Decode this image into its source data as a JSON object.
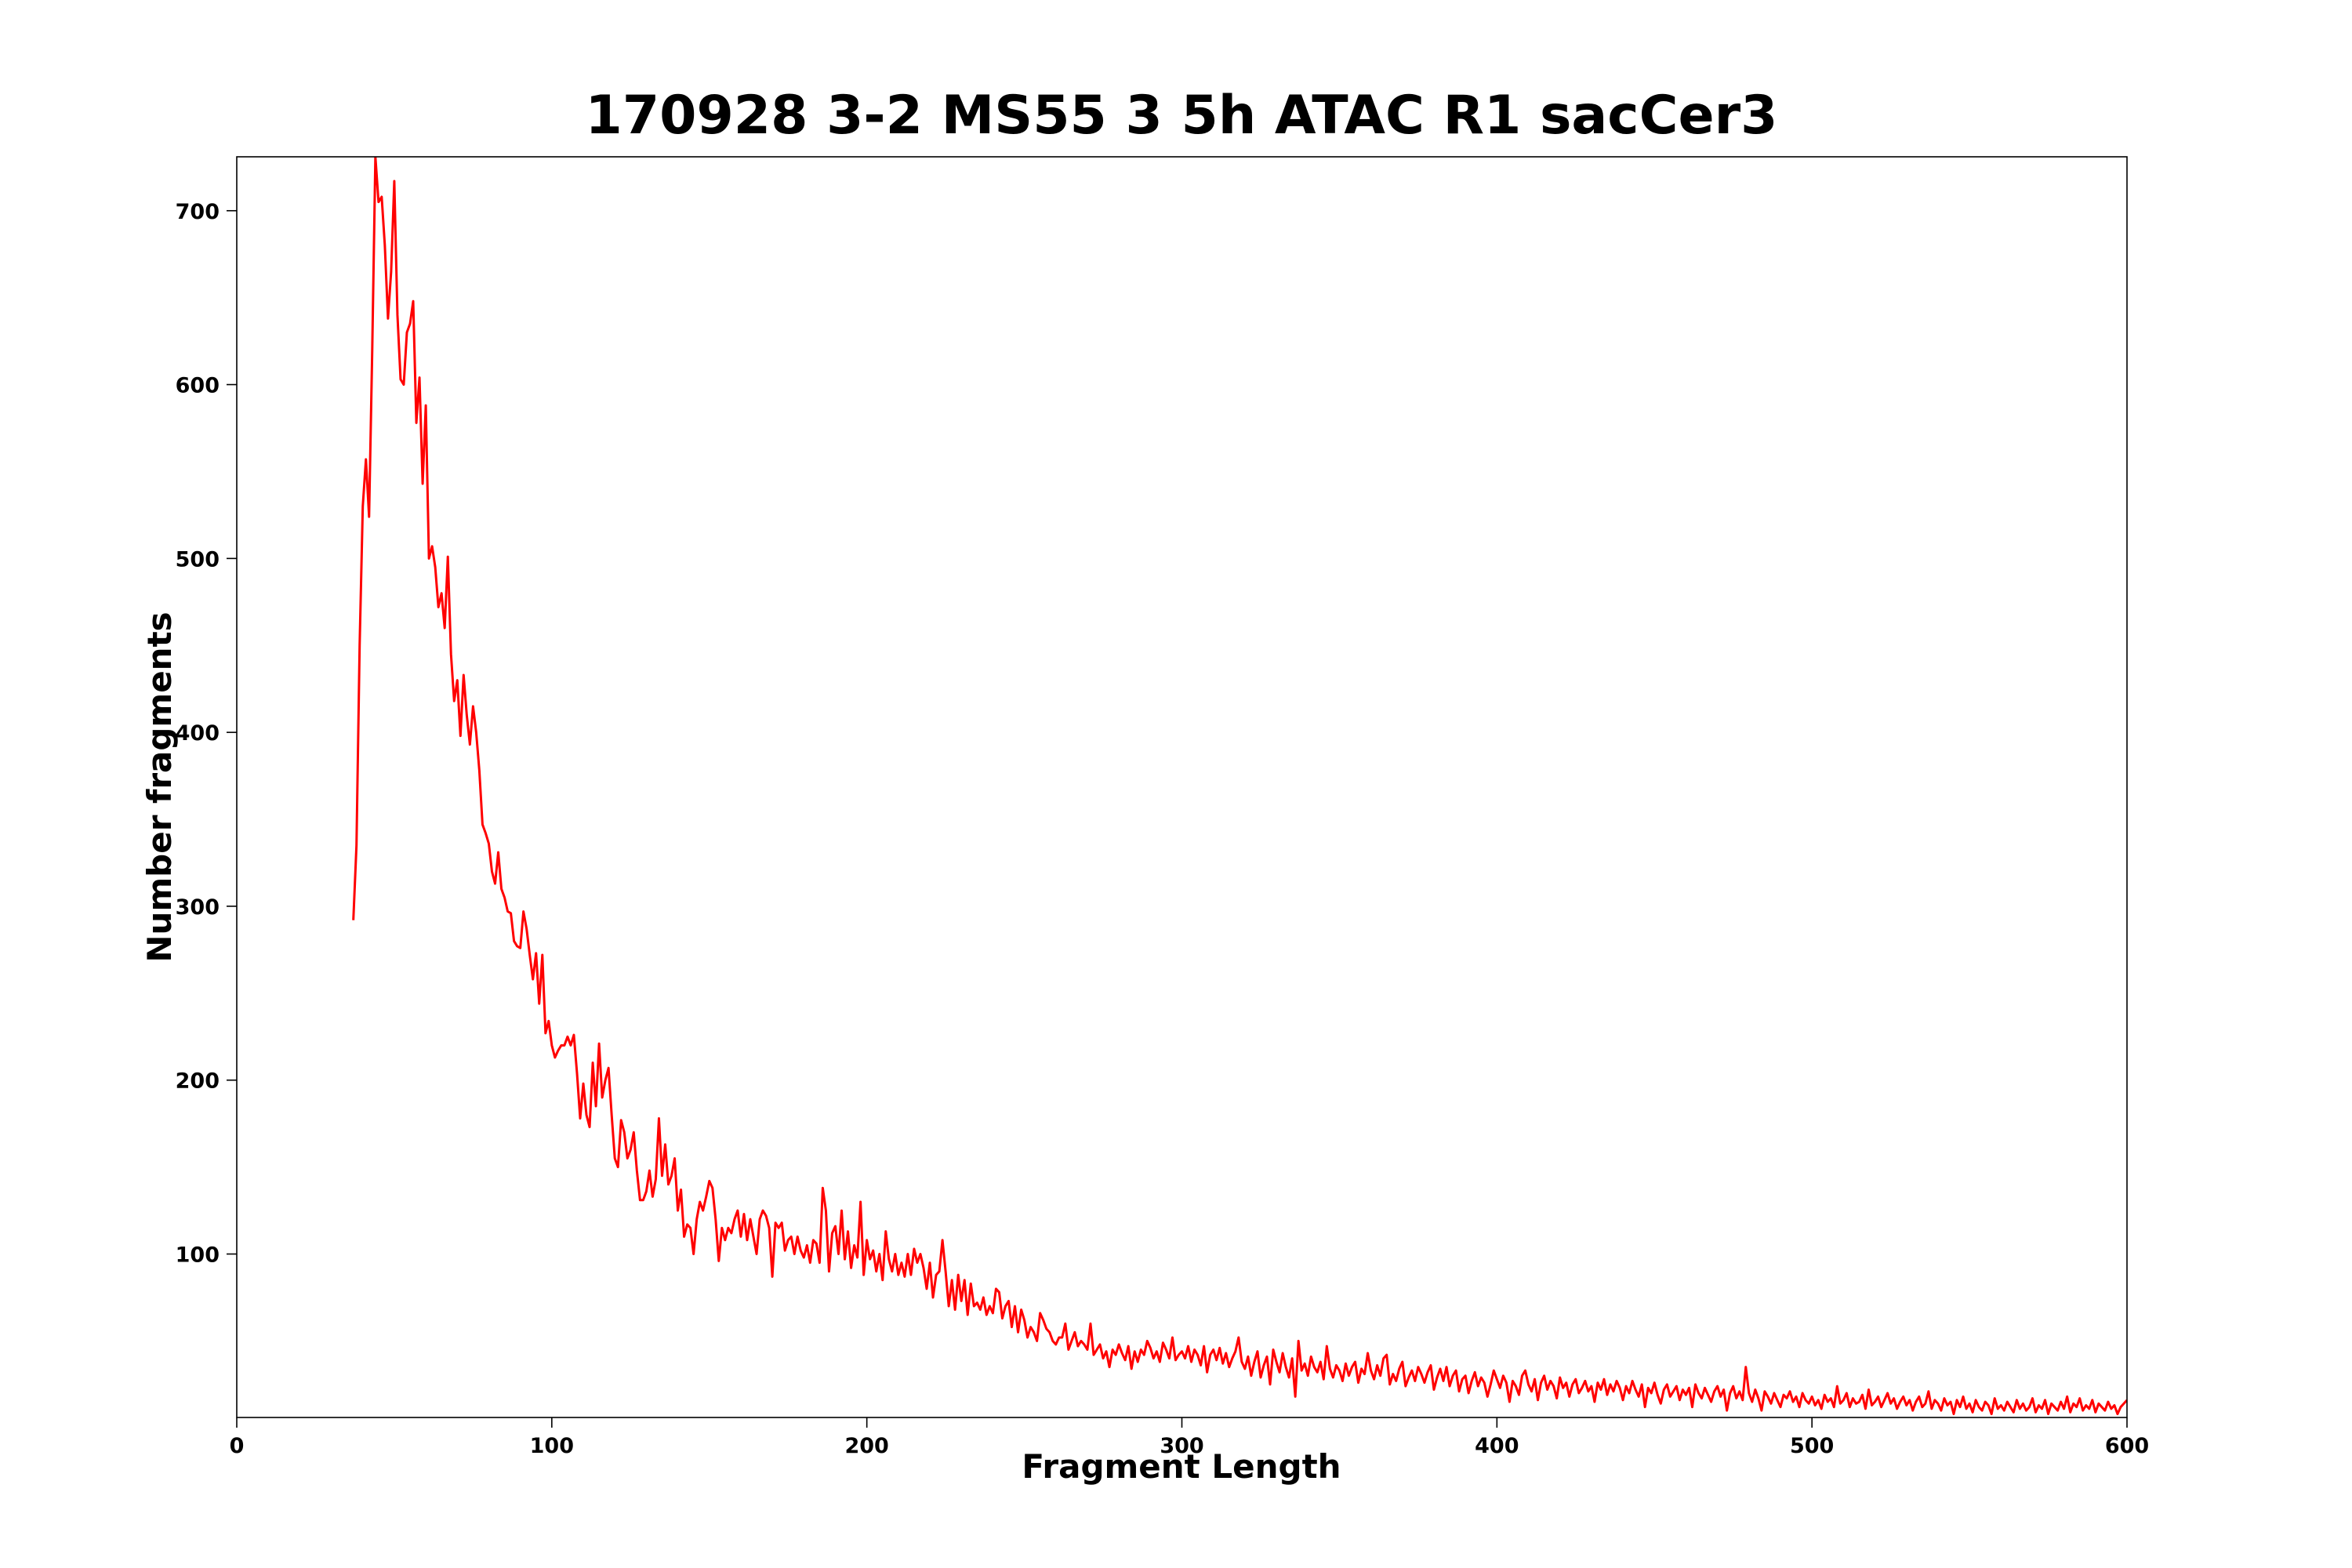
{
  "chart_data": {
    "type": "line",
    "title": "170928 3-2 MS55 3 5h ATAC R1 sacCer3",
    "xlabel": "Fragment Length",
    "ylabel": "Number fragments",
    "xlim": [
      0,
      600
    ],
    "ylim": [
      6,
      731
    ],
    "xticks": [
      0,
      100,
      200,
      300,
      400,
      500,
      600
    ],
    "yticks": [
      100,
      200,
      300,
      400,
      500,
      600,
      700
    ],
    "grid": false,
    "x": [
      37,
      38,
      39,
      40,
      41,
      42,
      43,
      44,
      45,
      46,
      47,
      48,
      49,
      50,
      51,
      52,
      53,
      54,
      55,
      56,
      57,
      58,
      59,
      60,
      61,
      62,
      63,
      64,
      65,
      66,
      67,
      68,
      69,
      70,
      71,
      72,
      73,
      74,
      75,
      76,
      77,
      78,
      79,
      80,
      81,
      82,
      83,
      84,
      85,
      86,
      87,
      88,
      89,
      90,
      91,
      92,
      93,
      94,
      95,
      96,
      97,
      98,
      99,
      100,
      101,
      102,
      103,
      104,
      105,
      106,
      107,
      108,
      109,
      110,
      111,
      112,
      113,
      114,
      115,
      116,
      117,
      118,
      119,
      120,
      121,
      122,
      123,
      124,
      125,
      126,
      127,
      128,
      129,
      130,
      131,
      132,
      133,
      134,
      135,
      136,
      137,
      138,
      139,
      140,
      141,
      142,
      143,
      144,
      145,
      146,
      147,
      148,
      149,
      150,
      151,
      152,
      153,
      154,
      155,
      156,
      157,
      158,
      159,
      160,
      161,
      162,
      163,
      164,
      165,
      166,
      167,
      168,
      169,
      170,
      171,
      172,
      173,
      174,
      175,
      176,
      177,
      178,
      179,
      180,
      181,
      182,
      183,
      184,
      185,
      186,
      187,
      188,
      189,
      190,
      191,
      192,
      193,
      194,
      195,
      196,
      197,
      198,
      199,
      200,
      201,
      202,
      203,
      204,
      205,
      206,
      207,
      208,
      209,
      210,
      211,
      212,
      213,
      214,
      215,
      216,
      217,
      218,
      219,
      220,
      221,
      222,
      223,
      224,
      225,
      226,
      227,
      228,
      229,
      230,
      231,
      232,
      233,
      234,
      235,
      236,
      237,
      238,
      239,
      240,
      241,
      242,
      243,
      244,
      245,
      246,
      247,
      248,
      249,
      250,
      251,
      252,
      253,
      254,
      255,
      256,
      257,
      258,
      259,
      260,
      261,
      262,
      263,
      264,
      265,
      266,
      267,
      268,
      269,
      270,
      271,
      272,
      273,
      274,
      275,
      276,
      277,
      278,
      279,
      280,
      281,
      282,
      283,
      284,
      285,
      286,
      287,
      288,
      289,
      290,
      291,
      292,
      293,
      294,
      295,
      296,
      297,
      298,
      299,
      300,
      301,
      302,
      303,
      304,
      305,
      306,
      307,
      308,
      309,
      310,
      311,
      312,
      313,
      314,
      315,
      316,
      317,
      318,
      319,
      320,
      321,
      322,
      323,
      324,
      325,
      326,
      327,
      328,
      329,
      330,
      331,
      332,
      333,
      334,
      335,
      336,
      337,
      338,
      339,
      340,
      341,
      342,
      343,
      344,
      345,
      346,
      347,
      348,
      349,
      350,
      351,
      352,
      353,
      354,
      355,
      356,
      357,
      358,
      359,
      360,
      361,
      362,
      363,
      364,
      365,
      366,
      367,
      368,
      369,
      370,
      371,
      372,
      373,
      374,
      375,
      376,
      377,
      378,
      379,
      380,
      381,
      382,
      383,
      384,
      385,
      386,
      387,
      388,
      389,
      390,
      391,
      392,
      393,
      394,
      395,
      396,
      397,
      398,
      399,
      400,
      401,
      402,
      403,
      404,
      405,
      406,
      407,
      408,
      409,
      410,
      411,
      412,
      413,
      414,
      415,
      416,
      417,
      418,
      419,
      420,
      421,
      422,
      423,
      424,
      425,
      426,
      427,
      428,
      429,
      430,
      431,
      432,
      433,
      434,
      435,
      436,
      437,
      438,
      439,
      440,
      441,
      442,
      443,
      444,
      445,
      446,
      447,
      448,
      449,
      450,
      451,
      452,
      453,
      454,
      455,
      456,
      457,
      458,
      459,
      460,
      461,
      462,
      463,
      464,
      465,
      466,
      467,
      468,
      469,
      470,
      471,
      472,
      473,
      474,
      475,
      476,
      477,
      478,
      479,
      480,
      481,
      482,
      483,
      484,
      485,
      486,
      487,
      488,
      489,
      490,
      491,
      492,
      493,
      494,
      495,
      496,
      497,
      498,
      499,
      500,
      501,
      502,
      503,
      504,
      505,
      506,
      507,
      508,
      509,
      510,
      511,
      512,
      513,
      514,
      515,
      516,
      517,
      518,
      519,
      520,
      521,
      522,
      523,
      524,
      525,
      526,
      527,
      528,
      529,
      530,
      531,
      532,
      533,
      534,
      535,
      536,
      537,
      538,
      539,
      540,
      541,
      542,
      543,
      544,
      545,
      546,
      547,
      548,
      549,
      550,
      551,
      552,
      553,
      554,
      555,
      556,
      557,
      558,
      559,
      560,
      561,
      562,
      563,
      564,
      565,
      566,
      567,
      568,
      569,
      570,
      571,
      572,
      573,
      574,
      575,
      576,
      577,
      578,
      579,
      580,
      581,
      582,
      583,
      584,
      585,
      586,
      587,
      588,
      589,
      590,
      591,
      592,
      593,
      594,
      595,
      596,
      597,
      598,
      599,
      600
    ],
    "series": [
      {
        "color": "#ff0000",
        "values": [
          292,
          335,
          450,
          530,
          557,
          524,
          620,
          731,
          705,
          708,
          680,
          638,
          665,
          717,
          640,
          603,
          600,
          630,
          635,
          648,
          578,
          604,
          543,
          588,
          500,
          507,
          495,
          472,
          480,
          460,
          501,
          445,
          418,
          430,
          398,
          433,
          410,
          393,
          415,
          400,
          378,
          347,
          342,
          336,
          320,
          313,
          331,
          310,
          305,
          297,
          296,
          280,
          277,
          276,
          297,
          287,
          272,
          258,
          273,
          244,
          272,
          227,
          234,
          220,
          213,
          217,
          220,
          220,
          225,
          220,
          226,
          204,
          178,
          198,
          180,
          173,
          210,
          185,
          221,
          190,
          200,
          207,
          180,
          155,
          150,
          177,
          170,
          155,
          160,
          170,
          148,
          131,
          131,
          136,
          148,
          133,
          143,
          178,
          145,
          163,
          140,
          145,
          155,
          125,
          137,
          110,
          117,
          115,
          100,
          120,
          130,
          125,
          133,
          142,
          138,
          120,
          96,
          115,
          108,
          115,
          112,
          120,
          125,
          110,
          123,
          108,
          120,
          110,
          100,
          120,
          125,
          122,
          115,
          87,
          118,
          115,
          118,
          102,
          108,
          110,
          100,
          110,
          102,
          98,
          105,
          95,
          108,
          106,
          95,
          138,
          125,
          90,
          112,
          116,
          100,
          125,
          97,
          113,
          92,
          105,
          98,
          130,
          88,
          108,
          97,
          102,
          90,
          100,
          85,
          113,
          97,
          90,
          100,
          88,
          95,
          87,
          100,
          88,
          103,
          95,
          100,
          92,
          80,
          95,
          75,
          88,
          90,
          108,
          90,
          70,
          85,
          68,
          88,
          73,
          85,
          65,
          83,
          70,
          72,
          68,
          75,
          65,
          70,
          66,
          80,
          78,
          63,
          70,
          73,
          58,
          70,
          55,
          68,
          62,
          52,
          58,
          55,
          50,
          66,
          62,
          57,
          55,
          50,
          48,
          52,
          52,
          60,
          45,
          50,
          55,
          47,
          50,
          48,
          45,
          60,
          42,
          45,
          48,
          40,
          44,
          35,
          45,
          42,
          48,
          43,
          39,
          47,
          34,
          44,
          38,
          45,
          42,
          50,
          46,
          40,
          44,
          38,
          49,
          45,
          40,
          52,
          39,
          42,
          44,
          40,
          47,
          38,
          45,
          42,
          36,
          47,
          32,
          42,
          45,
          39,
          46,
          37,
          43,
          35,
          40,
          44,
          52,
          38,
          34,
          41,
          30,
          38,
          44,
          29,
          36,
          41,
          25,
          45,
          38,
          32,
          43,
          35,
          29,
          40,
          18,
          50,
          33,
          37,
          30,
          41,
          35,
          32,
          38,
          28,
          47,
          34,
          29,
          36,
          33,
          27,
          37,
          30,
          35,
          38,
          26,
          34,
          31,
          43,
          33,
          28,
          36,
          30,
          40,
          42,
          25,
          31,
          27,
          34,
          38,
          24,
          29,
          33,
          27,
          35,
          31,
          26,
          32,
          36,
          22,
          29,
          34,
          27,
          35,
          24,
          30,
          33,
          21,
          28,
          30,
          20,
          27,
          32,
          24,
          29,
          26,
          18,
          25,
          33,
          28,
          23,
          30,
          26,
          15,
          27,
          24,
          19,
          30,
          33,
          25,
          21,
          28,
          16,
          26,
          30,
          22,
          27,
          24,
          17,
          29,
          23,
          26,
          18,
          25,
          28,
          20,
          23,
          27,
          21,
          24,
          15,
          26,
          22,
          28,
          19,
          25,
          21,
          27,
          23,
          16,
          24,
          20,
          27,
          22,
          18,
          25,
          12,
          23,
          20,
          26,
          19,
          14,
          22,
          25,
          18,
          21,
          24,
          16,
          22,
          19,
          23,
          12,
          25,
          20,
          17,
          23,
          19,
          15,
          21,
          24,
          18,
          22,
          10,
          20,
          24,
          17,
          21,
          16,
          35,
          20,
          15,
          22,
          17,
          10,
          21,
          18,
          14,
          20,
          16,
          12,
          19,
          17,
          21,
          15,
          18,
          12,
          20,
          16,
          14,
          18,
          13,
          16,
          11,
          19,
          15,
          17,
          12,
          24,
          14,
          16,
          20,
          12,
          17,
          14,
          15,
          19,
          11,
          22,
          13,
          15,
          18,
          12,
          16,
          20,
          14,
          17,
          11,
          15,
          18,
          13,
          16,
          10,
          15,
          18,
          12,
          14,
          21,
          11,
          16,
          14,
          10,
          17,
          13,
          15,
          8,
          16,
          12,
          18,
          11,
          14,
          9,
          16,
          12,
          10,
          15,
          13,
          8,
          17,
          11,
          13,
          10,
          15,
          12,
          9,
          16,
          11,
          14,
          10,
          12,
          17,
          9,
          13,
          11,
          16,
          8,
          14,
          12,
          10,
          15,
          11,
          18,
          9,
          14,
          12,
          17,
          10,
          13,
          11,
          16,
          9,
          14,
          12,
          10,
          15,
          11,
          13,
          8,
          12,
          14,
          16
        ]
      }
    ]
  }
}
